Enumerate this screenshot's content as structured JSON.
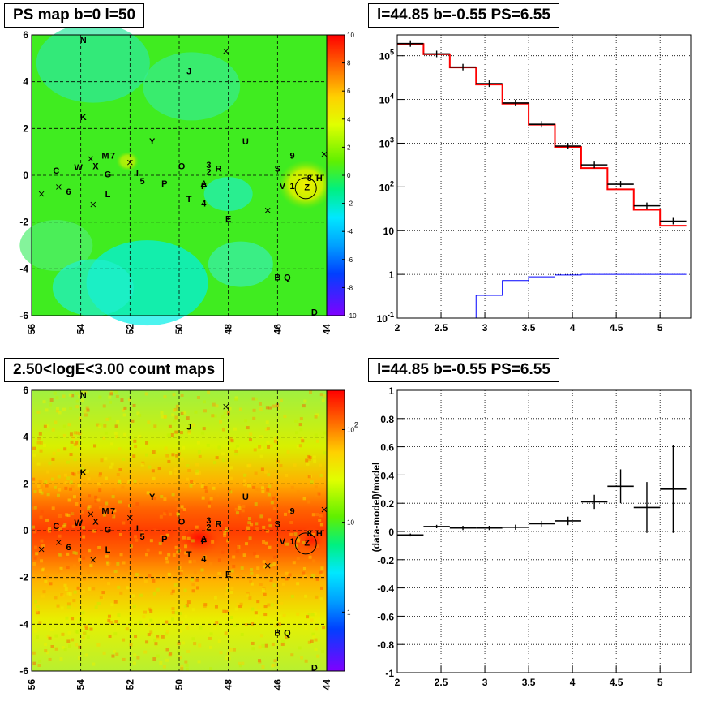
{
  "panels": {
    "tl_title": "PS map b=0 l=50",
    "tr_title": "l=44.85 b=-0.55 PS=6.55",
    "bl_title": "2.50<logE<3.00 count maps",
    "br_title": "l=44.85 b=-0.55 PS=6.55",
    "br_ylabel": "(data-model)/model"
  },
  "colors": {
    "data": "#000000",
    "model": "#ff0000",
    "ratio": "#0000ff",
    "frame": "#000000"
  },
  "chart_data": [
    {
      "type": "heatmap",
      "title": "PS map b=0 l=50",
      "xlim": [
        56,
        44
      ],
      "ylim": [
        -6,
        6
      ],
      "x_ticks": [
        "56",
        "54",
        "52",
        "50",
        "48",
        "46",
        "44"
      ],
      "y_ticks": [
        "6",
        "4",
        "2",
        "0",
        "-2",
        "-4",
        "-6"
      ],
      "colorbar_range": [
        -10,
        10
      ],
      "colorbar_ticks": [
        "10",
        "8",
        "6",
        "4",
        "2",
        "0",
        "-2",
        "-4",
        "-6",
        "-8",
        "-10"
      ],
      "grid": true,
      "marker_circle": {
        "l": 44.85,
        "b": -0.55
      },
      "source_labels": [
        {
          "t": "N",
          "l": 53.9,
          "b": 5.8
        },
        {
          "t": "J",
          "l": 49.6,
          "b": 4.45
        },
        {
          "t": "K",
          "l": 53.9,
          "b": 2.5
        },
        {
          "t": "Y",
          "l": 51.1,
          "b": 1.45
        },
        {
          "t": "U",
          "l": 47.3,
          "b": 1.45
        },
        {
          "t": "M",
          "l": 53.0,
          "b": 0.85
        },
        {
          "t": "7",
          "l": 52.7,
          "b": 0.85
        },
        {
          "t": "9",
          "l": 45.4,
          "b": 0.85
        },
        {
          "t": "X",
          "l": 53.4,
          "b": 0.4
        },
        {
          "t": "W",
          "l": 54.1,
          "b": 0.35
        },
        {
          "t": "C",
          "l": 55.0,
          "b": 0.2
        },
        {
          "t": "G",
          "l": 52.9,
          "b": 0.05
        },
        {
          "t": "I",
          "l": 51.7,
          "b": 0.1
        },
        {
          "t": "O",
          "l": 49.9,
          "b": 0.4
        },
        {
          "t": "3",
          "l": 48.8,
          "b": 0.45
        },
        {
          "t": "2",
          "l": 48.8,
          "b": 0.15
        },
        {
          "t": "R",
          "l": 48.4,
          "b": 0.3
        },
        {
          "t": "S",
          "l": 46.0,
          "b": 0.3
        },
        {
          "t": "5",
          "l": 51.5,
          "b": -0.25
        },
        {
          "t": "P",
          "l": 50.6,
          "b": -0.35
        },
        {
          "t": "A",
          "l": 49.0,
          "b": -0.35
        },
        {
          "t": "F",
          "l": 49.0,
          "b": -0.45
        },
        {
          "t": "V",
          "l": 45.8,
          "b": -0.45
        },
        {
          "t": "1",
          "l": 45.4,
          "b": -0.45
        },
        {
          "t": "8",
          "l": 44.7,
          "b": -0.1
        },
        {
          "t": "H",
          "l": 44.3,
          "b": -0.1
        },
        {
          "t": "Z",
          "l": 44.8,
          "b": -0.5
        },
        {
          "t": "6",
          "l": 54.5,
          "b": -0.7
        },
        {
          "t": "L",
          "l": 52.9,
          "b": -0.8
        },
        {
          "t": "T",
          "l": 49.6,
          "b": -1.0
        },
        {
          "t": "4",
          "l": 49.0,
          "b": -1.2
        },
        {
          "t": "E",
          "l": 48.0,
          "b": -1.85
        },
        {
          "t": "B",
          "l": 46.0,
          "b": -4.35
        },
        {
          "t": "Q",
          "l": 45.6,
          "b": -4.35
        },
        {
          "t": "D",
          "l": 44.5,
          "b": -5.85
        }
      ],
      "x_markers": [
        {
          "l": 48.1,
          "b": 5.3
        },
        {
          "l": 53.6,
          "b": 0.7
        },
        {
          "l": 52.0,
          "b": 0.55
        },
        {
          "l": 55.6,
          "b": -0.8
        },
        {
          "l": 54.9,
          "b": -0.5
        },
        {
          "l": 53.5,
          "b": -1.25
        },
        {
          "l": 46.4,
          "b": -1.5
        },
        {
          "l": 44.1,
          "b": 0.9
        }
      ]
    },
    {
      "type": "line",
      "xlim": [
        2,
        5.35
      ],
      "ylim": [
        0.1,
        300000
      ],
      "log_y": true,
      "x_ticks": [
        "2",
        "2.5",
        "3",
        "3.5",
        "4",
        "4.5",
        "5"
      ],
      "y_ticks": [
        "10^5",
        "10^4",
        "10^3",
        "10^2",
        "10",
        "1",
        "10^-1"
      ],
      "grid": true,
      "bin_edges": [
        2.0,
        2.3,
        2.6,
        2.9,
        3.2,
        3.5,
        3.8,
        4.1,
        4.4,
        4.7,
        5.0,
        5.3
      ],
      "series": [
        {
          "values": [
            185000,
            108000,
            54000,
            22000,
            8000,
            2650,
            820,
            270,
            88,
            30,
            13
          ]
        },
        {
          "values": [
            190000,
            110000,
            55000,
            23000,
            8300,
            2700,
            860,
            320,
            115,
            37,
            16.5
          ]
        },
        {
          "values": [
            0.1,
            0.1,
            0.1,
            0.33,
            0.72,
            0.88,
            0.97,
            1.0,
            1.0,
            1.0,
            1.0
          ]
        }
      ]
    },
    {
      "type": "heatmap",
      "title": "2.50<logE<3.00 count maps",
      "xlim": [
        56,
        44
      ],
      "ylim": [
        -6,
        6
      ],
      "x_ticks": [
        "56",
        "54",
        "52",
        "50",
        "48",
        "46",
        "44"
      ],
      "y_ticks": [
        "6",
        "4",
        "2",
        "0",
        "-2",
        "-4",
        "-6"
      ],
      "colorbar_log": true,
      "colorbar_ticks": [
        "10^2",
        "10",
        "1"
      ],
      "grid": true
    },
    {
      "type": "scatter",
      "xlim": [
        2,
        5.35
      ],
      "ylim": [
        -1,
        1
      ],
      "ylabel": "(data-model)/model",
      "x_ticks": [
        "2",
        "2.5",
        "3",
        "3.5",
        "4",
        "4.5",
        "5"
      ],
      "y_ticks": [
        "1",
        "0.8",
        "0.6",
        "0.4",
        "0.2",
        "0",
        "-0.2",
        "-0.4",
        "-0.6",
        "-0.8",
        "-1"
      ],
      "grid": true,
      "points": [
        {
          "x": 2.15,
          "y": -0.025,
          "err": 0.01
        },
        {
          "x": 2.45,
          "y": 0.035,
          "err": 0.012
        },
        {
          "x": 2.75,
          "y": 0.025,
          "err": 0.015
        },
        {
          "x": 3.05,
          "y": 0.025,
          "err": 0.015
        },
        {
          "x": 3.35,
          "y": 0.03,
          "err": 0.018
        },
        {
          "x": 3.65,
          "y": 0.055,
          "err": 0.02
        },
        {
          "x": 3.95,
          "y": 0.075,
          "err": 0.03
        },
        {
          "x": 4.25,
          "y": 0.21,
          "err": 0.05
        },
        {
          "x": 4.55,
          "y": 0.32,
          "err": 0.12
        },
        {
          "x": 4.85,
          "y": 0.17,
          "err": 0.18
        },
        {
          "x": 5.15,
          "y": 0.3,
          "err": 0.31
        }
      ],
      "xerr": 0.15
    }
  ]
}
